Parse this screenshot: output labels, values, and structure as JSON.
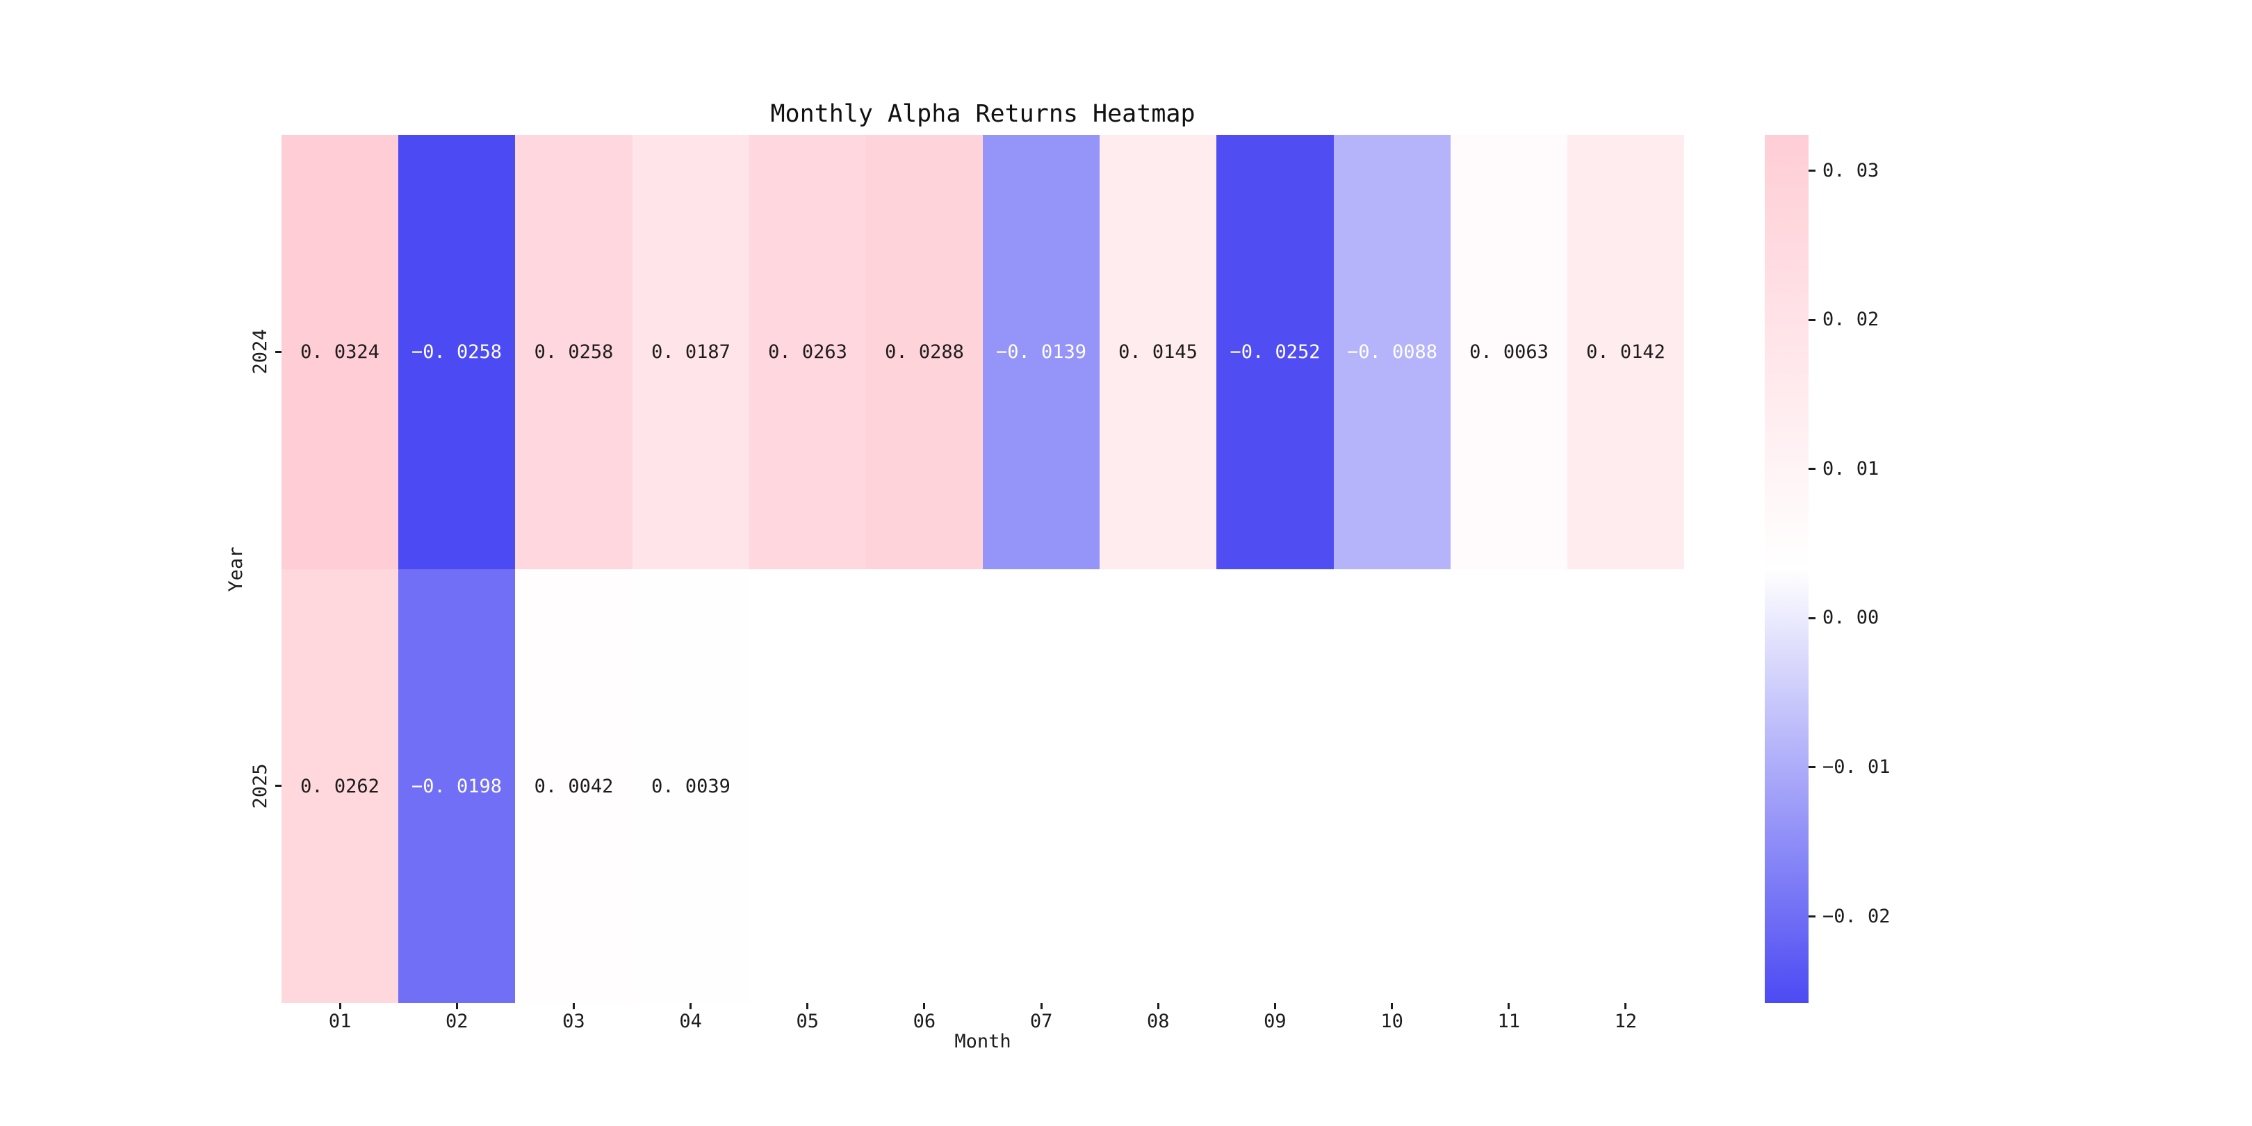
{
  "chart_data": {
    "type": "heatmap",
    "title": "Monthly Alpha Returns Heatmap",
    "xlabel": "Month",
    "ylabel": "Year",
    "x_categories": [
      "01",
      "02",
      "03",
      "04",
      "05",
      "06",
      "07",
      "08",
      "09",
      "10",
      "11",
      "12"
    ],
    "y_categories": [
      "2024",
      "2025"
    ],
    "series": [
      {
        "name": "2024",
        "values": [
          0.0324,
          -0.0258,
          0.0258,
          0.0187,
          0.0263,
          0.0288,
          -0.0139,
          0.0145,
          -0.0252,
          -0.0088,
          0.0063,
          0.0142
        ]
      },
      {
        "name": "2025",
        "values": [
          0.0262,
          -0.0198,
          0.0042,
          0.0039,
          null,
          null,
          null,
          null,
          null,
          null,
          null,
          null
        ]
      }
    ],
    "annot_decimals": 4,
    "vmin": -0.0258,
    "vmax": 0.0324,
    "grid": false,
    "legend_position": "colorbar-right",
    "colorbar": {
      "ticks": [
        0.03,
        0.02,
        0.01,
        0.0,
        -0.01,
        -0.02
      ],
      "tick_decimals": 2
    },
    "colors": {
      "negative_end": "#4c4af3",
      "center": "#ffffff",
      "positive_end": "#ffcdd5",
      "nan_cell": "#ffffff",
      "annot_dark": "#1c1c1c",
      "annot_light": "#ffffff",
      "tick": "#1c1c1c",
      "background": "#ffffff"
    }
  }
}
